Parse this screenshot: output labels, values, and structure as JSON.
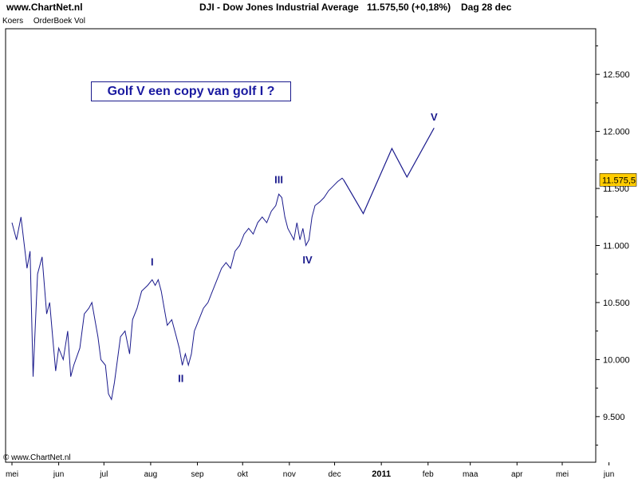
{
  "header": {
    "site": "www.ChartNet.nl",
    "title": "DJI - Dow Jones Industrial Average",
    "quote": "11.575,50 (+0,18%)",
    "period": "Dag  28 dec"
  },
  "subtabs": [
    "Koers",
    "OrderBoek Vol"
  ],
  "annotation": "Golf V een copy van golf I ?",
  "watermark": "© www.ChartNet.nl",
  "chart_data": {
    "type": "line",
    "title": "DJI - Dow Jones Industrial Average",
    "xlabel": "",
    "ylabel": "",
    "ylim": [
      9100,
      12900
    ],
    "y_ticks": [
      9500,
      10000,
      10500,
      11000,
      11500,
      12000,
      12500
    ],
    "y_tick_labels": [
      "9.500",
      "10.000",
      "10.500",
      "11.000",
      "11.500",
      "12.000",
      "12.500"
    ],
    "x_ticks": [
      {
        "day": 0,
        "label": "mei"
      },
      {
        "day": 31,
        "label": "jun"
      },
      {
        "day": 61,
        "label": "jul"
      },
      {
        "day": 92,
        "label": "aug"
      },
      {
        "day": 123,
        "label": "sep"
      },
      {
        "day": 153,
        "label": "okt"
      },
      {
        "day": 184,
        "label": "nov"
      },
      {
        "day": 214,
        "label": "dec"
      },
      {
        "day": 245,
        "label": "2011"
      },
      {
        "day": 276,
        "label": "feb"
      },
      {
        "day": 304,
        "label": "maa"
      },
      {
        "day": 335,
        "label": "apr"
      },
      {
        "day": 365,
        "label": "mei"
      },
      {
        "day": 396,
        "label": "jun"
      }
    ],
    "x_max_day": 409,
    "grid": false,
    "last_price": 11575.5,
    "last_price_label": "11.575,5",
    "price_path": [
      [
        0,
        11200
      ],
      [
        3,
        11050
      ],
      [
        6,
        11250
      ],
      [
        10,
        10800
      ],
      [
        12,
        10950
      ],
      [
        14,
        9850
      ],
      [
        17,
        10750
      ],
      [
        20,
        10900
      ],
      [
        23,
        10400
      ],
      [
        25,
        10500
      ],
      [
        27,
        10200
      ],
      [
        29,
        9900
      ],
      [
        31,
        10100
      ],
      [
        34,
        10000
      ],
      [
        37,
        10250
      ],
      [
        39,
        9850
      ],
      [
        41,
        9950
      ],
      [
        45,
        10100
      ],
      [
        48,
        10400
      ],
      [
        51,
        10450
      ],
      [
        53,
        10500
      ],
      [
        55,
        10350
      ],
      [
        57,
        10200
      ],
      [
        59,
        10000
      ],
      [
        62,
        9950
      ],
      [
        64,
        9700
      ],
      [
        66,
        9650
      ],
      [
        68,
        9800
      ],
      [
        70,
        10000
      ],
      [
        72,
        10200
      ],
      [
        75,
        10250
      ],
      [
        78,
        10050
      ],
      [
        80,
        10350
      ],
      [
        83,
        10450
      ],
      [
        86,
        10600
      ],
      [
        90,
        10650
      ],
      [
        93,
        10700
      ],
      [
        95,
        10650
      ],
      [
        97,
        10700
      ],
      [
        99,
        10600
      ],
      [
        101,
        10450
      ],
      [
        103,
        10300
      ],
      [
        106,
        10350
      ],
      [
        109,
        10200
      ],
      [
        111,
        10100
      ],
      [
        113,
        9950
      ],
      [
        115,
        10050
      ],
      [
        117,
        9950
      ],
      [
        119,
        10050
      ],
      [
        121,
        10250
      ],
      [
        124,
        10350
      ],
      [
        127,
        10450
      ],
      [
        130,
        10500
      ],
      [
        133,
        10600
      ],
      [
        136,
        10700
      ],
      [
        139,
        10800
      ],
      [
        142,
        10850
      ],
      [
        145,
        10800
      ],
      [
        148,
        10950
      ],
      [
        151,
        11000
      ],
      [
        154,
        11100
      ],
      [
        157,
        11150
      ],
      [
        160,
        11100
      ],
      [
        163,
        11200
      ],
      [
        166,
        11250
      ],
      [
        169,
        11200
      ],
      [
        172,
        11300
      ],
      [
        175,
        11350
      ],
      [
        177,
        11450
      ],
      [
        179,
        11420
      ],
      [
        181,
        11250
      ],
      [
        183,
        11150
      ],
      [
        185,
        11100
      ],
      [
        187,
        11050
      ],
      [
        189,
        11200
      ],
      [
        191,
        11050
      ],
      [
        193,
        11150
      ],
      [
        195,
        11000
      ],
      [
        197,
        11050
      ],
      [
        199,
        11250
      ],
      [
        201,
        11350
      ],
      [
        204,
        11380
      ],
      [
        207,
        11420
      ],
      [
        210,
        11480
      ],
      [
        213,
        11520
      ],
      [
        216,
        11560
      ],
      [
        219,
        11590
      ],
      [
        220,
        11575
      ]
    ],
    "projection": [
      [
        220,
        11575
      ],
      [
        233,
        11280
      ],
      [
        252,
        11850
      ],
      [
        262,
        11600
      ],
      [
        280,
        12030
      ]
    ],
    "wave_labels": [
      {
        "label": "I",
        "day": 93,
        "value": 10770,
        "pos": "above"
      },
      {
        "label": "II",
        "day": 112,
        "value": 9930,
        "pos": "below"
      },
      {
        "label": "III",
        "day": 177,
        "value": 11490,
        "pos": "above"
      },
      {
        "label": "IV",
        "day": 196,
        "value": 10970,
        "pos": "below"
      },
      {
        "label": "V",
        "day": 280,
        "value": 12040,
        "pos": "above"
      }
    ],
    "colors": {
      "price": "#1a1a8c",
      "projection": "#1a1a8c",
      "wave_label": "#1a1a8c",
      "last_price_bg": "#ffcc00",
      "axis": "#000000"
    }
  }
}
